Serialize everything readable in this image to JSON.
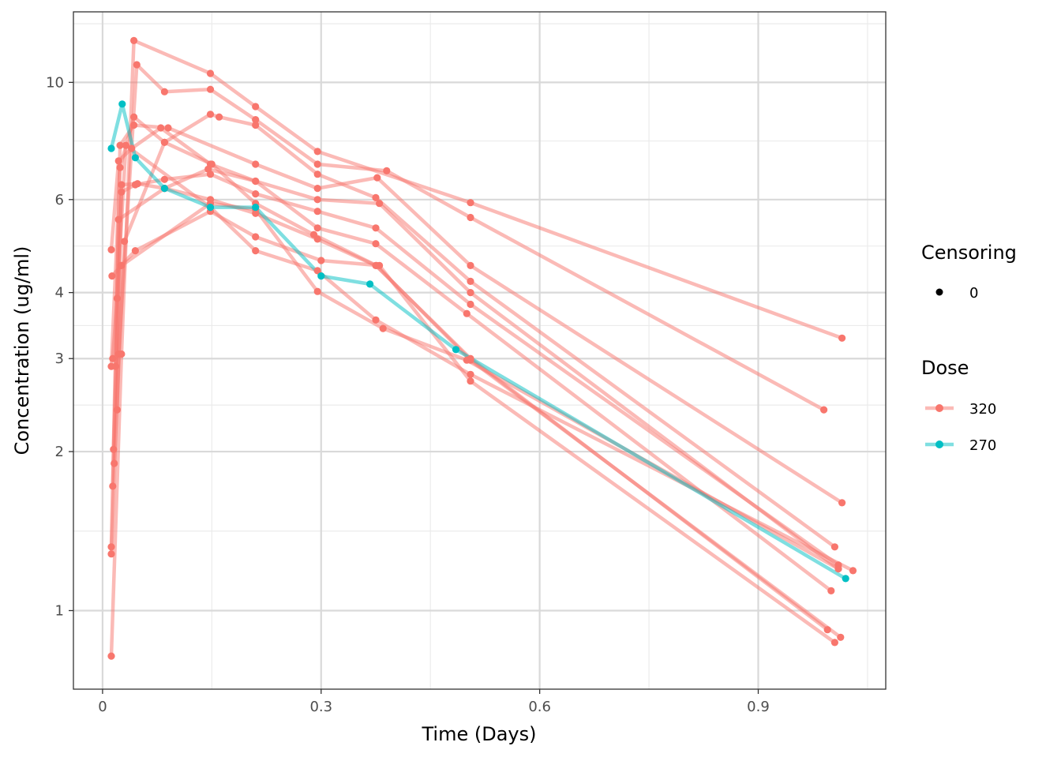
{
  "chart_data": {
    "type": "line",
    "title": "",
    "xlabel": "Time (Days)",
    "ylabel": "Concentration (ug/ml)",
    "xlim": [
      -0.04,
      1.075
    ],
    "ylim": [
      0.71,
      13.6
    ],
    "y_scale": "log",
    "x_ticks": [
      0,
      0.3,
      0.6,
      0.9
    ],
    "x_tick_labels": [
      "0",
      "0.3",
      "0.6",
      "0.9"
    ],
    "y_ticks": [
      1,
      2,
      3,
      4,
      6,
      10
    ],
    "y_tick_labels": [
      "1",
      "2",
      "3",
      "4",
      "6",
      "10"
    ],
    "grid": true,
    "legend_position": "right",
    "legend": {
      "censoring_title": "Censoring",
      "censoring_items": [
        "0"
      ],
      "dose_title": "Dose",
      "dose_items": [
        "320",
        "270"
      ]
    },
    "colors": {
      "320": "#F8766D",
      "270": "#00BFC4"
    },
    "series": [
      {
        "name": "320",
        "points": [
          [
            0.012,
            0.82
          ],
          [
            0.026,
            3.06
          ],
          [
            0.043,
            12.0
          ],
          [
            0.148,
            10.4
          ],
          [
            0.21,
            9.0
          ],
          [
            0.295,
            7.4
          ],
          [
            0.505,
            5.92
          ],
          [
            1.015,
            3.28
          ]
        ]
      },
      {
        "name": "320",
        "points": [
          [
            0.012,
            1.28
          ],
          [
            0.022,
            3.06
          ],
          [
            0.047,
            10.8
          ],
          [
            0.085,
            9.6
          ],
          [
            0.148,
            9.7
          ],
          [
            0.21,
            8.5
          ],
          [
            0.295,
            7.0
          ],
          [
            0.39,
            6.8
          ],
          [
            0.505,
            5.55
          ],
          [
            0.99,
            2.4
          ]
        ]
      },
      {
        "name": "320",
        "points": [
          [
            0.012,
            1.32
          ],
          [
            0.024,
            7.6
          ],
          [
            0.043,
            8.3
          ],
          [
            0.09,
            8.2
          ],
          [
            0.21,
            7.0
          ],
          [
            0.295,
            6.3
          ],
          [
            0.377,
            6.6
          ],
          [
            0.505,
            4.5
          ],
          [
            1.015,
            1.6
          ]
        ]
      },
      {
        "name": "320",
        "points": [
          [
            0.012,
            2.9
          ],
          [
            0.024,
            6.9
          ],
          [
            0.043,
            8.6
          ],
          [
            0.085,
            7.7
          ],
          [
            0.148,
            8.7
          ],
          [
            0.16,
            8.6
          ],
          [
            0.21,
            8.3
          ],
          [
            0.295,
            6.7
          ],
          [
            0.375,
            6.05
          ],
          [
            0.505,
            4.2
          ],
          [
            1.005,
            1.32
          ]
        ]
      },
      {
        "name": "320",
        "points": [
          [
            0.012,
            4.82
          ],
          [
            0.022,
            7.1
          ],
          [
            0.04,
            7.5
          ],
          [
            0.08,
            8.2
          ],
          [
            0.148,
            7.0
          ],
          [
            0.21,
            6.5
          ],
          [
            0.295,
            6.0
          ],
          [
            0.38,
            5.9
          ],
          [
            0.505,
            4.0
          ],
          [
            1.01,
            1.2
          ]
        ]
      },
      {
        "name": "320",
        "points": [
          [
            0.014,
            1.72
          ],
          [
            0.026,
            6.2
          ],
          [
            0.045,
            6.4
          ],
          [
            0.085,
            6.55
          ],
          [
            0.148,
            6.7
          ],
          [
            0.21,
            6.15
          ],
          [
            0.295,
            5.7
          ],
          [
            0.375,
            5.3
          ],
          [
            0.505,
            3.8
          ],
          [
            1.01,
            1.22
          ]
        ]
      },
      {
        "name": "320",
        "points": [
          [
            0.015,
            2.02
          ],
          [
            0.026,
            6.4
          ],
          [
            0.048,
            6.43
          ],
          [
            0.085,
            6.3
          ],
          [
            0.145,
            6.85
          ],
          [
            0.21,
            6.5
          ],
          [
            0.295,
            5.3
          ],
          [
            0.375,
            4.95
          ],
          [
            0.5,
            3.65
          ],
          [
            1.0,
            1.09
          ]
        ]
      },
      {
        "name": "320",
        "points": [
          [
            0.016,
            1.9
          ],
          [
            0.03,
            5.0
          ],
          [
            0.085,
            7.7
          ],
          [
            0.15,
            7.0
          ],
          [
            0.21,
            5.9
          ],
          [
            0.29,
            5.15
          ],
          [
            0.376,
            4.5
          ],
          [
            0.505,
            2.98
          ],
          [
            1.013,
            0.89
          ]
        ]
      },
      {
        "name": "320",
        "points": [
          [
            0.018,
            2.9
          ],
          [
            0.022,
            5.5
          ],
          [
            0.085,
            6.3
          ],
          [
            0.148,
            6.0
          ],
          [
            0.21,
            5.65
          ],
          [
            0.295,
            5.05
          ],
          [
            0.375,
            4.5
          ],
          [
            0.505,
            3.0
          ],
          [
            0.995,
            0.92
          ]
        ]
      },
      {
        "name": "320",
        "points": [
          [
            0.02,
            2.4
          ],
          [
            0.025,
            4.5
          ],
          [
            0.045,
            4.8
          ],
          [
            0.148,
            5.7
          ],
          [
            0.21,
            5.1
          ],
          [
            0.3,
            4.6
          ],
          [
            0.38,
            4.5
          ],
          [
            0.505,
            2.72
          ],
          [
            1.005,
            0.87
          ]
        ]
      },
      {
        "name": "320",
        "points": [
          [
            0.014,
            3.0
          ],
          [
            0.02,
            3.9
          ],
          [
            0.032,
            7.6
          ],
          [
            0.148,
            5.8
          ],
          [
            0.21,
            4.8
          ],
          [
            0.295,
            4.4
          ],
          [
            0.375,
            3.55
          ],
          [
            0.505,
            2.8
          ],
          [
            1.03,
            1.19
          ]
        ]
      },
      {
        "name": "320",
        "points": [
          [
            0.013,
            4.3
          ],
          [
            0.026,
            4.5
          ],
          [
            0.148,
            5.9
          ],
          [
            0.21,
            5.75
          ],
          [
            0.295,
            4.02
          ],
          [
            0.385,
            3.42
          ],
          [
            0.5,
            2.98
          ],
          [
            1.01,
            1.2
          ]
        ]
      },
      {
        "name": "270",
        "points": [
          [
            0.012,
            7.5
          ],
          [
            0.027,
            9.1
          ],
          [
            0.045,
            7.2
          ],
          [
            0.085,
            6.3
          ],
          [
            0.148,
            5.8
          ],
          [
            0.21,
            5.8
          ],
          [
            0.3,
            4.3
          ],
          [
            0.367,
            4.15
          ],
          [
            0.485,
            3.12
          ],
          [
            1.02,
            1.15
          ]
        ]
      }
    ]
  }
}
